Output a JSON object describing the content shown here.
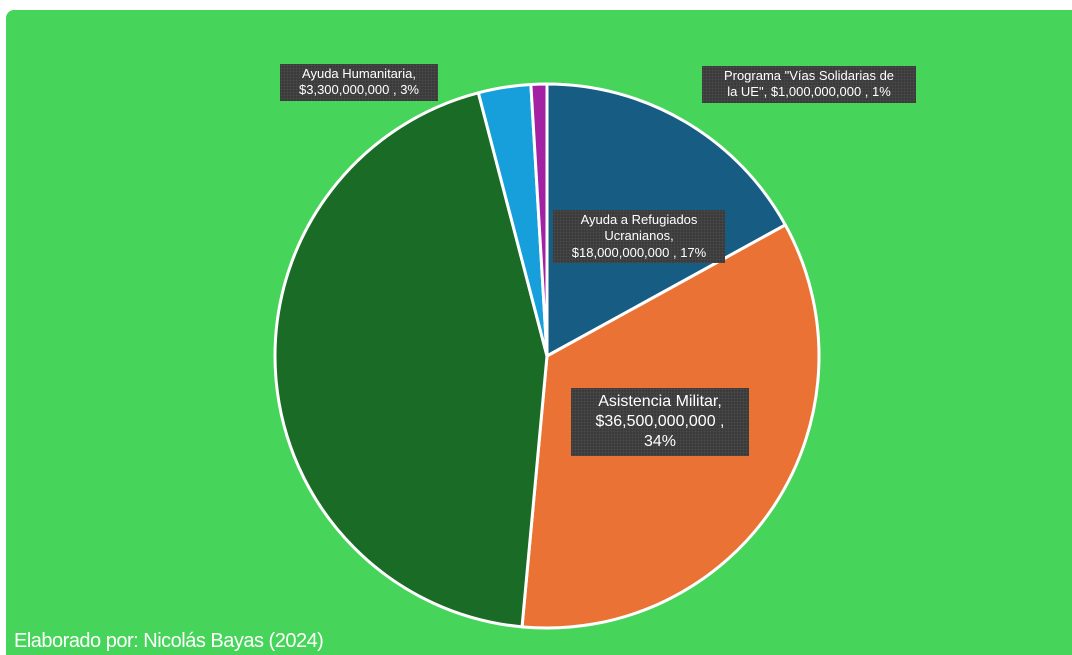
{
  "chart_data": {
    "type": "pie",
    "slices": [
      {
        "name": "Ayuda a Refugiados Ucranianos",
        "value": 18000000000,
        "percent": 17,
        "color": "#175c82"
      },
      {
        "name": "Asistencia Militar",
        "value": 36500000000,
        "percent": 34,
        "color": "#ea7234"
      },
      {
        "name": "",
        "value": 47100000000,
        "percent": 44,
        "color": "#1a6b26"
      },
      {
        "name": "Ayuda Humanitaria",
        "value": 3300000000,
        "percent": 3,
        "color": "#169fda"
      },
      {
        "name": "Programa \"Vías Solidarias de la UE\"",
        "value": 1000000000,
        "percent": 1,
        "color": "#a322a3"
      }
    ],
    "labels": {
      "refugiados": [
        "Ayuda a Refugiados",
        "Ucranianos,",
        "$18,000,000,000 , 17%"
      ],
      "militar": [
        "Asistencia Militar,",
        "$36,500,000,000 ,",
        "34%"
      ],
      "humanitaria": [
        "Ayuda Humanitaria,",
        "$3,300,000,000 , 3%"
      ],
      "programa": [
        "Programa \"Vías Solidarias de",
        "la UE\",  $1,000,000,000 , 1%"
      ]
    }
  },
  "credit": "Elaborado por: Nicolás Bayas (2024)",
  "colors": {
    "background": "#47d45a",
    "slice_border": "#ffffff",
    "label_box": "#3b3b3b"
  }
}
